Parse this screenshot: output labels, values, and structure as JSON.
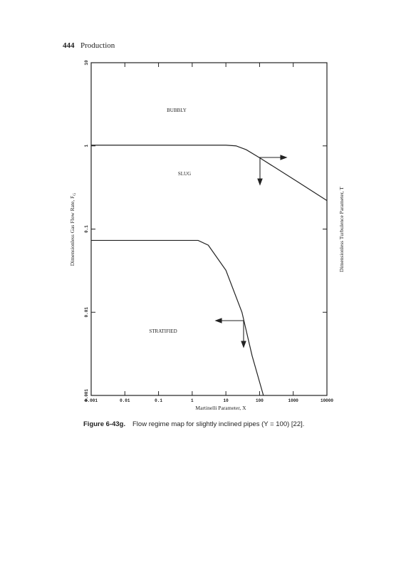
{
  "header": {
    "page_number": "444",
    "section": "Production"
  },
  "chart_data": {
    "type": "line",
    "x_label": "Martinelli Parameter, X",
    "y_label": "Dimensionless Gas Flow Rate, F",
    "y_label_subscript": "G",
    "y2_label": "Dimensionless Turbulence Parameter, T",
    "annotations": [
      "BUBBLY",
      "SLUG",
      "STRATIFIED"
    ],
    "x_log": true,
    "y_log": true,
    "xlim": [
      0.001,
      10000
    ],
    "ylim": [
      0.001,
      10
    ],
    "xticks": [
      0.001,
      0.01,
      0.1,
      1,
      10,
      100,
      1000,
      10000
    ],
    "yticks": [
      0.001,
      0.01,
      0.1,
      1,
      10
    ],
    "series": [
      {
        "color": "#222222",
        "x": [
          0.001,
          10,
          20,
          40,
          100,
          1000,
          10000
        ],
        "values": [
          1.02,
          1.02,
          1.0,
          0.9,
          0.72,
          0.4,
          0.22
        ]
      },
      {
        "color": "#222222",
        "x": [
          0.001,
          1.5,
          3,
          10,
          30,
          60,
          130
        ],
        "values": [
          0.073,
          0.073,
          0.064,
          0.032,
          0.01,
          0.003,
          0.001
        ]
      }
    ]
  },
  "caption": {
    "label": "Figure 6-43g.",
    "text": "Flow regime map for slightly inclined pipes (Y = 100) [22]."
  }
}
